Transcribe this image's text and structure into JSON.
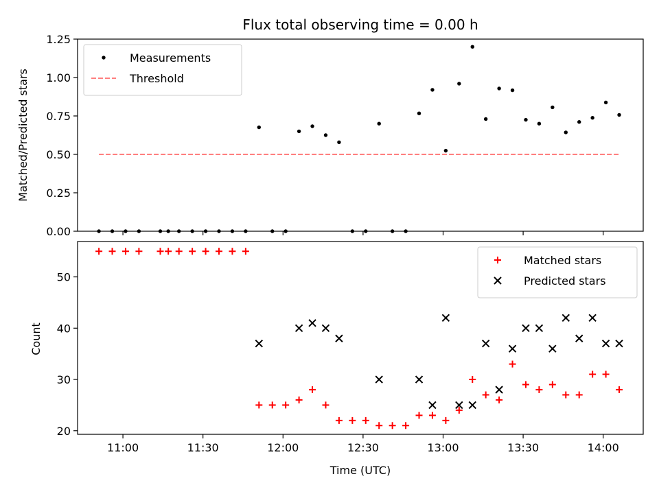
{
  "chart_data": [
    {
      "type": "scatter",
      "title": "Flux total observing time = 0.00 h",
      "xlabel": "",
      "ylabel": "Matched/Predicted stars",
      "xlim": [
        "10:43",
        "14:15"
      ],
      "ylim": [
        0,
        1.25
      ],
      "yticks": [
        "0.00",
        "0.25",
        "0.50",
        "0.75",
        "1.00",
        "1.25"
      ],
      "xticks": [
        "11:00",
        "11:30",
        "12:00",
        "12:30",
        "13:00",
        "13:30",
        "14:00"
      ],
      "show_xtick_labels": false,
      "grid": false,
      "legend_position": "top-left",
      "series": [
        {
          "name": "Measurements",
          "kind": "points",
          "marker": "dot",
          "color": "#000000",
          "x": [
            "10:51",
            "10:56",
            "11:01",
            "11:06",
            "11:14",
            "11:17",
            "11:21",
            "11:26",
            "11:31",
            "11:36",
            "11:41",
            "11:46",
            "11:51",
            "11:56",
            "12:01",
            "12:06",
            "12:11",
            "12:16",
            "12:21",
            "12:26",
            "12:31",
            "12:36",
            "12:41",
            "12:46",
            "12:51",
            "12:56",
            "13:01",
            "13:06",
            "13:11",
            "13:16",
            "13:21",
            "13:26",
            "13:31",
            "13:36",
            "13:41",
            "13:46",
            "13:51",
            "13:56",
            "14:01",
            "14:06"
          ],
          "values": [
            0,
            0,
            0,
            0,
            0,
            0,
            0,
            0,
            0,
            0,
            0,
            0,
            0.676,
            0,
            0,
            0.65,
            0.683,
            0.625,
            0.579,
            0,
            0,
            0.7,
            0,
            0,
            0.767,
            0.92,
            0.524,
            0.96,
            1.2,
            0.73,
            0.929,
            0.917,
            0.725,
            0.7,
            0.806,
            0.643,
            0.711,
            0.738,
            0.838,
            0.757
          ]
        },
        {
          "name": "Threshold",
          "kind": "line",
          "style": "dashed",
          "color": "#ff7f7f",
          "x": [
            "10:51",
            "14:06"
          ],
          "values": [
            0.5,
            0.5
          ]
        }
      ]
    },
    {
      "type": "scatter",
      "title": "",
      "xlabel": "Time (UTC)",
      "ylabel": "Count",
      "xlim": [
        "10:43",
        "14:15"
      ],
      "ylim": [
        19.3,
        56.9
      ],
      "yticks": [
        "20",
        "30",
        "40",
        "50"
      ],
      "xticks": [
        "11:00",
        "11:30",
        "12:00",
        "12:30",
        "13:00",
        "13:30",
        "14:00"
      ],
      "grid": false,
      "legend_position": "top-right",
      "series": [
        {
          "name": "Matched stars",
          "kind": "points",
          "marker": "plus",
          "color": "#ff0000",
          "x": [
            "10:51",
            "10:56",
            "11:01",
            "11:06",
            "11:14",
            "11:17",
            "11:21",
            "11:26",
            "11:31",
            "11:36",
            "11:41",
            "11:46",
            "11:51",
            "11:56",
            "12:01",
            "12:06",
            "12:11",
            "12:16",
            "12:21",
            "12:26",
            "12:31",
            "12:36",
            "12:41",
            "12:46",
            "12:51",
            "12:56",
            "13:01",
            "13:06",
            "13:11",
            "13:16",
            "13:21",
            "13:26",
            "13:31",
            "13:36",
            "13:41",
            "13:46",
            "13:51",
            "13:56",
            "14:01",
            "14:06"
          ],
          "values": [
            55,
            55,
            55,
            55,
            55,
            55,
            55,
            55,
            55,
            55,
            55,
            55,
            25,
            25,
            25,
            26,
            28,
            25,
            22,
            22,
            22,
            21,
            21,
            21,
            23,
            23,
            22,
            24,
            30,
            27,
            26,
            33,
            29,
            28,
            29,
            27,
            27,
            31,
            31,
            28
          ]
        },
        {
          "name": "Predicted stars",
          "kind": "points",
          "marker": "x",
          "color": "#000000",
          "x": [
            "11:51",
            "12:06",
            "12:11",
            "12:16",
            "12:21",
            "12:36",
            "12:51",
            "12:56",
            "13:01",
            "13:06",
            "13:11",
            "13:16",
            "13:21",
            "13:26",
            "13:31",
            "13:36",
            "13:41",
            "13:46",
            "13:51",
            "13:56",
            "14:01",
            "14:06"
          ],
          "values": [
            37,
            40,
            41,
            40,
            38,
            30,
            30,
            25,
            42,
            25,
            25,
            37,
            28,
            36,
            40,
            40,
            36,
            42,
            38,
            42,
            37,
            37
          ]
        }
      ]
    }
  ]
}
